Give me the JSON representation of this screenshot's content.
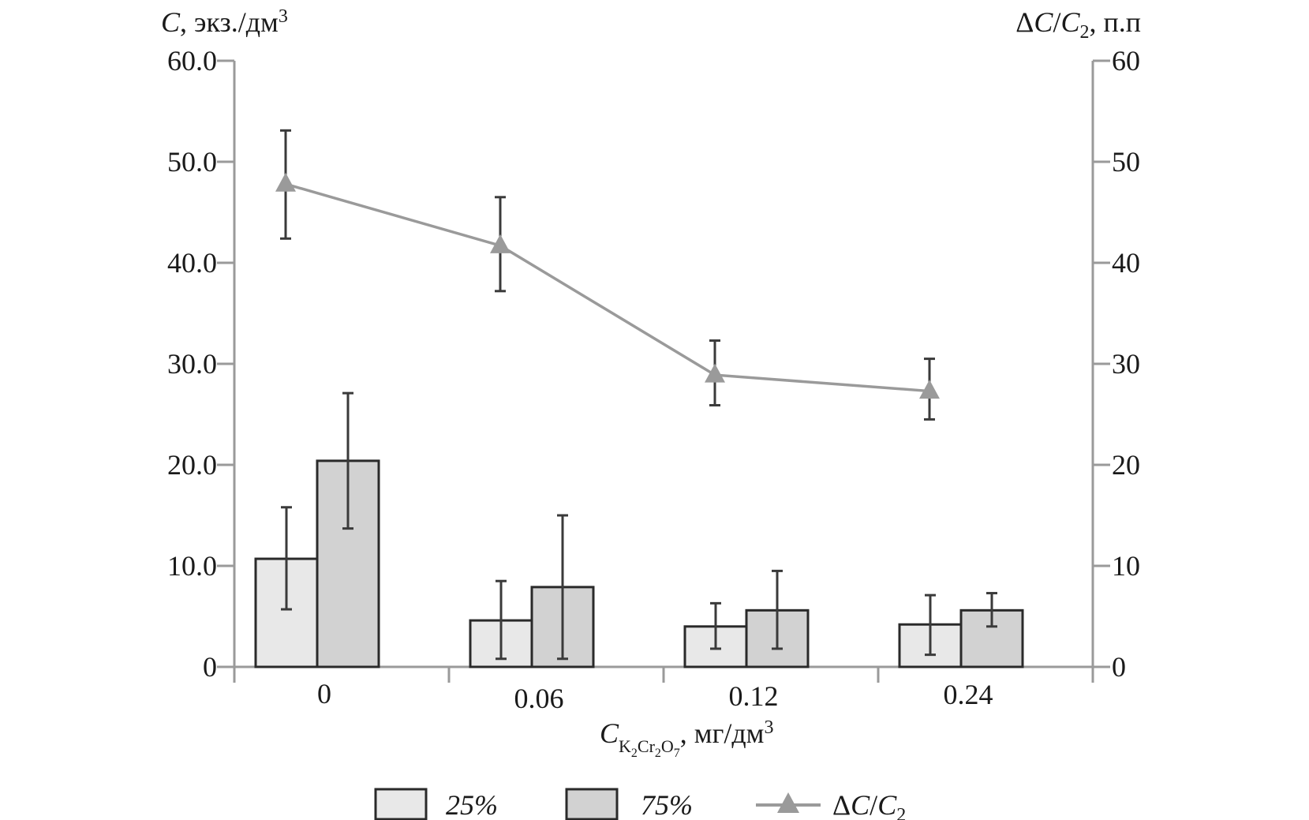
{
  "chart_data": {
    "type": "bar",
    "title": "",
    "categories": [
      "0",
      "0.06",
      "0.12",
      "0.24"
    ],
    "y_left": {
      "label_symbol": "C",
      "label_rest": ", экз./дм",
      "label_sup": "3",
      "ylim": [
        0,
        60
      ],
      "tick_labels": [
        "0",
        "10.0",
        "20.0",
        "30.0",
        "40.0",
        "50.0",
        "60.0"
      ],
      "tick_values": [
        0,
        10,
        20,
        30,
        40,
        50,
        60
      ]
    },
    "y_right": {
      "label_delta": "Δ",
      "label_c1": "C",
      "label_slash": "/",
      "label_c2": "C",
      "label_sub": "2",
      "label_rest": ", п.п",
      "ylim": [
        0,
        60
      ],
      "tick_labels": [
        "0",
        "10",
        "20",
        "30",
        "40",
        "50",
        "60"
      ],
      "tick_values": [
        0,
        10,
        20,
        30,
        40,
        50,
        60
      ]
    },
    "x_axis": {
      "label_symbol": "C",
      "label_sub_K": "K",
      "label_sub_2a": "2",
      "label_sub_Cr": "Cr",
      "label_sub_2b": "2",
      "label_sub_O": "O",
      "label_sub_7": "7",
      "label_rest": ", мг/дм",
      "label_sup": "3"
    },
    "series": [
      {
        "name": "25%",
        "kind": "bar",
        "axis": "left",
        "color": "#e8e8e8",
        "values": [
          10.7,
          4.6,
          4.0,
          4.2
        ],
        "err_low": [
          5.7,
          0.8,
          1.8,
          1.2
        ],
        "err_high": [
          15.8,
          8.5,
          6.3,
          7.1
        ]
      },
      {
        "name": "75%",
        "kind": "bar",
        "axis": "left",
        "color": "#d2d2d2",
        "values": [
          20.4,
          7.9,
          5.6,
          5.6
        ],
        "err_low": [
          13.7,
          0.8,
          1.8,
          4.0
        ],
        "err_high": [
          27.1,
          15.0,
          9.5,
          7.3
        ]
      },
      {
        "name_delta": "Δ",
        "name_c1": "C",
        "name_slash": "/",
        "name_c2": "C",
        "name_sub": "2",
        "kind": "line",
        "marker": "triangle",
        "axis": "right",
        "color": "#9a9a9a",
        "values": [
          47.8,
          41.7,
          28.9,
          27.3
        ],
        "err_low": [
          42.4,
          37.2,
          25.9,
          24.5
        ],
        "err_high": [
          53.1,
          46.5,
          32.3,
          30.5
        ]
      }
    ]
  }
}
